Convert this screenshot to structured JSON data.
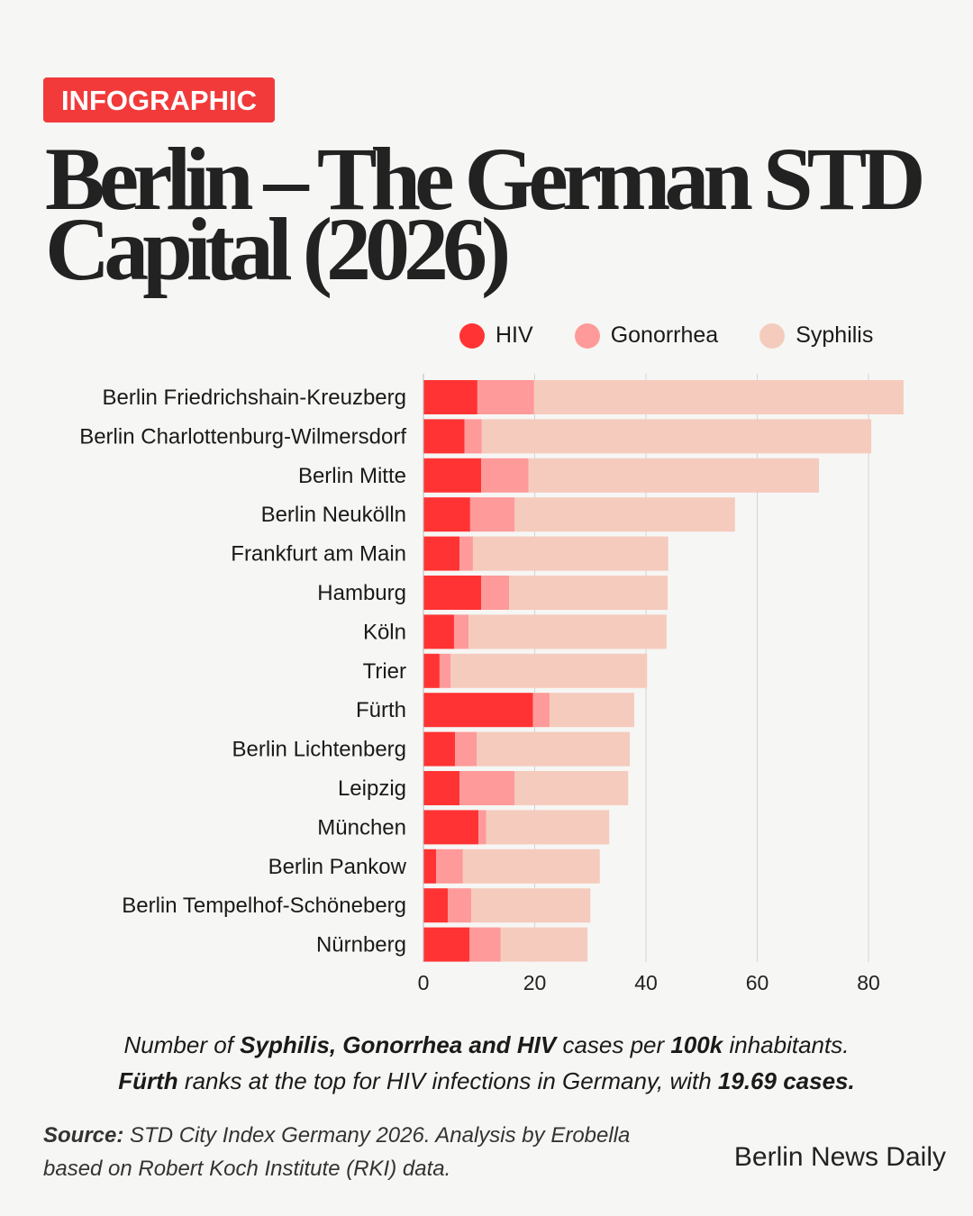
{
  "badge": "INFOGRAPHIC",
  "title": "Berlin – The German STD Capital (2026)",
  "chart_data": {
    "type": "bar",
    "orientation": "horizontal",
    "stacked": true,
    "categories": [
      "Berlin Friedrichshain-Kreuzberg",
      "Berlin Charlottenburg-Wilmersdorf",
      "Berlin Mitte",
      "Berlin Neukölln",
      "Frankfurt am Main",
      "Hamburg",
      "Köln",
      "Trier",
      "Fürth",
      "Berlin Lichtenberg",
      "Leipzig",
      "München",
      "Berlin Pankow",
      "Berlin Tempelhof-Schöneberg",
      "Nürnberg"
    ],
    "series": [
      {
        "name": "HIV",
        "color": "#ff3333",
        "values": [
          9.7,
          7.4,
          10.4,
          8.4,
          6.5,
          10.4,
          5.5,
          2.9,
          19.69,
          5.7,
          6.5,
          9.9,
          2.3,
          4.4,
          8.3
        ]
      },
      {
        "name": "Gonorrhea",
        "color": "#ff9a9a",
        "values": [
          10.2,
          3.1,
          8.5,
          8.0,
          2.4,
          5.0,
          2.6,
          2.0,
          3.0,
          3.9,
          9.9,
          1.4,
          4.8,
          4.2,
          5.6
        ]
      },
      {
        "name": "Syphilis",
        "color": "#f5cbbd",
        "values": [
          66.4,
          70.0,
          52.2,
          39.6,
          35.1,
          28.5,
          35.6,
          35.3,
          15.2,
          27.5,
          20.4,
          22.1,
          24.6,
          21.4,
          15.6
        ]
      }
    ],
    "xlim": [
      0,
      90
    ],
    "xticks": [
      "0",
      "20",
      "40",
      "60",
      "80"
    ],
    "grid": true,
    "legend": "top-right"
  },
  "caption": {
    "line1": [
      {
        "t": "Number of ",
        "b": false
      },
      {
        "t": "Syphilis, Gonorrhea and HIV",
        "b": true
      },
      {
        "t": " cases per ",
        "b": false
      },
      {
        "t": "100k",
        "b": true
      },
      {
        "t": " inhabitants.",
        "b": false
      }
    ],
    "line2": [
      {
        "t": "Fürth",
        "b": true
      },
      {
        "t": " ranks at the top for HIV infections in Germany, with ",
        "b": false
      },
      {
        "t": "19.69 cases.",
        "b": true
      }
    ]
  },
  "source": {
    "label": "Source:",
    "text": " STD City Index Germany 2026. Analysis by Erobella",
    "line2": "based on Robert Koch Institute (RKI) data."
  },
  "brand": "Berlin News Daily"
}
